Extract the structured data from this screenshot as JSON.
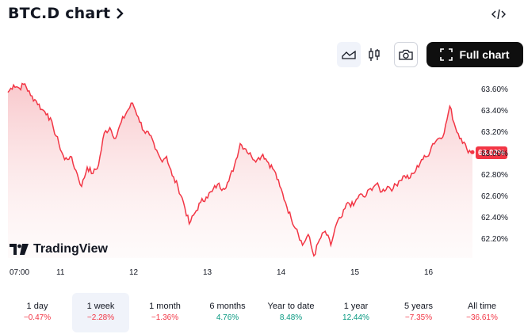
{
  "header": {
    "title": "BTC.D chart",
    "chevron_icon": "chevron-right-icon",
    "embed_icon": "code-icon"
  },
  "toolbar": {
    "area_icon": "area-chart-icon",
    "candle_icon": "candlestick-icon",
    "camera_icon": "camera-icon",
    "fullscreen_icon": "fullscreen-icon",
    "full_chart_label": "Full chart"
  },
  "chart": {
    "current_price": "63.02%",
    "y_ticks": [
      "63.60%",
      "63.40%",
      "63.20%",
      "63.00%",
      "62.80%",
      "62.60%",
      "62.40%",
      "62.20%"
    ],
    "x_ticks": [
      "07:00",
      "11",
      "12",
      "13",
      "14",
      "15",
      "16"
    ],
    "watermark": "TradingView",
    "colors": {
      "line": "#f23645",
      "fill_top": "#f8c6ca",
      "badge": "#f23645"
    }
  },
  "chart_data": {
    "type": "area",
    "ylim": [
      62.0,
      63.75
    ],
    "x_ticks": [
      "07:00",
      "11",
      "12",
      "13",
      "14",
      "15",
      "16"
    ],
    "y_ticks": [
      62.2,
      62.4,
      62.6,
      62.8,
      63.0,
      63.2,
      63.4,
      63.6
    ],
    "series": [
      {
        "values": [
          63.58,
          63.65,
          63.62,
          63.66,
          63.55,
          63.5,
          63.42,
          63.38,
          63.25,
          63.1,
          62.95,
          62.98,
          62.85,
          62.7,
          62.88,
          62.82,
          62.9,
          63.2,
          63.25,
          63.15,
          63.3,
          63.4,
          63.48,
          63.35,
          63.22,
          63.18,
          63.05,
          62.95,
          62.98,
          62.8,
          62.7,
          62.55,
          62.35,
          62.45,
          62.55,
          62.6,
          62.65,
          62.72,
          62.68,
          62.75,
          62.9,
          63.1,
          63.05,
          62.98,
          62.95,
          63.0,
          62.92,
          62.85,
          62.7,
          62.55,
          62.4,
          62.3,
          62.15,
          62.25,
          62.05,
          62.2,
          62.28,
          62.15,
          62.35,
          62.42,
          62.55,
          62.52,
          62.62,
          62.6,
          62.68,
          62.72,
          62.65,
          62.7,
          62.68,
          62.75,
          62.8,
          62.78,
          62.85,
          62.95,
          62.98,
          63.1,
          63.15,
          63.2,
          63.45,
          63.25,
          63.15,
          63.05,
          63.02
        ]
      }
    ]
  },
  "ranges": [
    {
      "label": "1 day",
      "value": "−0.47%",
      "sign": "neg",
      "active": false
    },
    {
      "label": "1 week",
      "value": "−2.28%",
      "sign": "neg",
      "active": true
    },
    {
      "label": "1 month",
      "value": "−1.36%",
      "sign": "neg",
      "active": false
    },
    {
      "label": "6 months",
      "value": "4.76%",
      "sign": "pos",
      "active": false
    },
    {
      "label": "Year to date",
      "value": "8.48%",
      "sign": "pos",
      "active": false
    },
    {
      "label": "1 year",
      "value": "12.44%",
      "sign": "pos",
      "active": false
    },
    {
      "label": "5 years",
      "value": "−7.35%",
      "sign": "neg",
      "active": false
    },
    {
      "label": "All time",
      "value": "−36.61%",
      "sign": "neg",
      "active": false
    }
  ]
}
